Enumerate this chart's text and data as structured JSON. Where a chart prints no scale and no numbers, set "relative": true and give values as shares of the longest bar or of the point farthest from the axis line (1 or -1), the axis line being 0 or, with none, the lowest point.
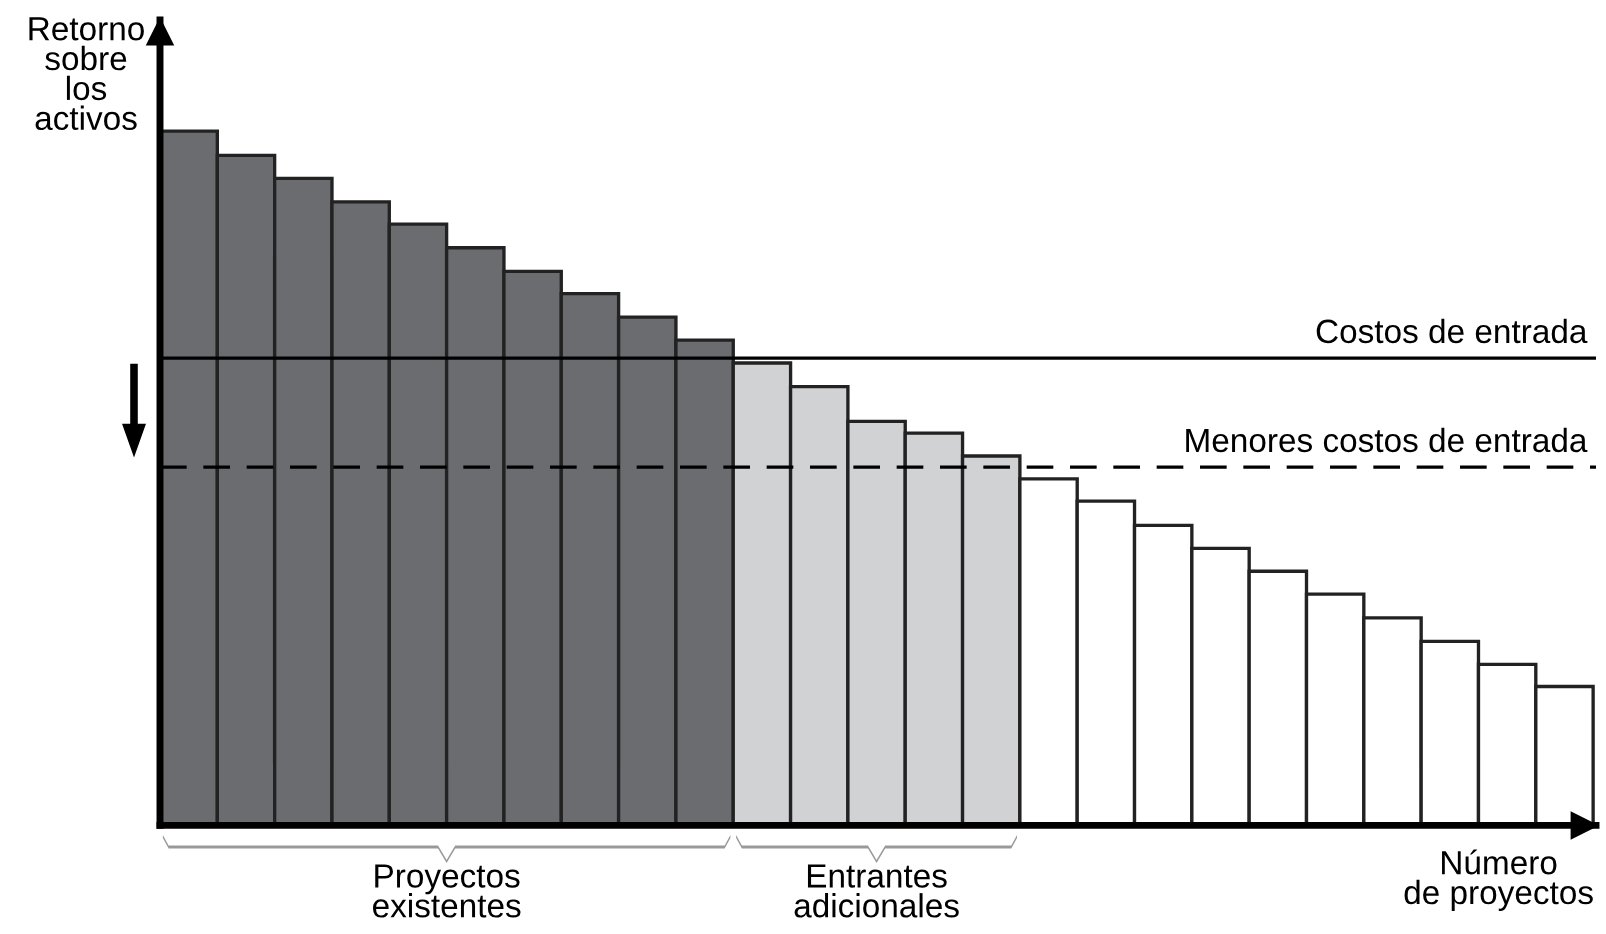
{
  "chart_data": {
    "type": "bar",
    "relative": true,
    "xlabel": "Número\nde proyectos",
    "ylabel": "Retorno\nsobre\nlos\nactivos",
    "categories": [
      null,
      null,
      null,
      null,
      null,
      null,
      null,
      null,
      null,
      null,
      null,
      null,
      null,
      null,
      null,
      null,
      null,
      null,
      null,
      null,
      null,
      null,
      null,
      null,
      null
    ],
    "values": [
      1,
      0.965,
      0.932,
      0.898,
      0.866,
      0.832,
      0.798,
      0.766,
      0.732,
      0.699,
      0.666,
      0.632,
      0.582,
      0.565,
      0.532,
      0.499,
      0.467,
      0.432,
      0.399,
      0.366,
      0.333,
      0.299,
      0.265,
      0.232,
      0.2
    ],
    "colors": [
      "#6b6c70",
      "#6b6c70",
      "#6b6c70",
      "#6b6c70",
      "#6b6c70",
      "#6b6c70",
      "#6b6c70",
      "#6b6c70",
      "#6b6c70",
      "#6b6c70",
      "#d1d2d4",
      "#d1d2d4",
      "#d1d2d4",
      "#d1d2d4",
      "#d1d2d4",
      "#ffffff",
      "#ffffff",
      "#ffffff",
      "#ffffff",
      "#ffffff",
      "#ffffff",
      "#ffffff",
      "#ffffff",
      "#ffffff",
      "#ffffff"
    ],
    "ref_lines": [
      {
        "axis": "y",
        "value": 0.673,
        "label": "Costos de entrada",
        "color": "#000000",
        "line_style": "solid"
      },
      {
        "axis": "y",
        "value": 0.516,
        "label": "Menores costos de entrada",
        "color": "#000000",
        "line_style": "dashed"
      }
    ],
    "annotations": [
      "Proyectos\nexistentes",
      "Entrantes\nadicionales"
    ],
    "grid": false,
    "legend": false
  }
}
